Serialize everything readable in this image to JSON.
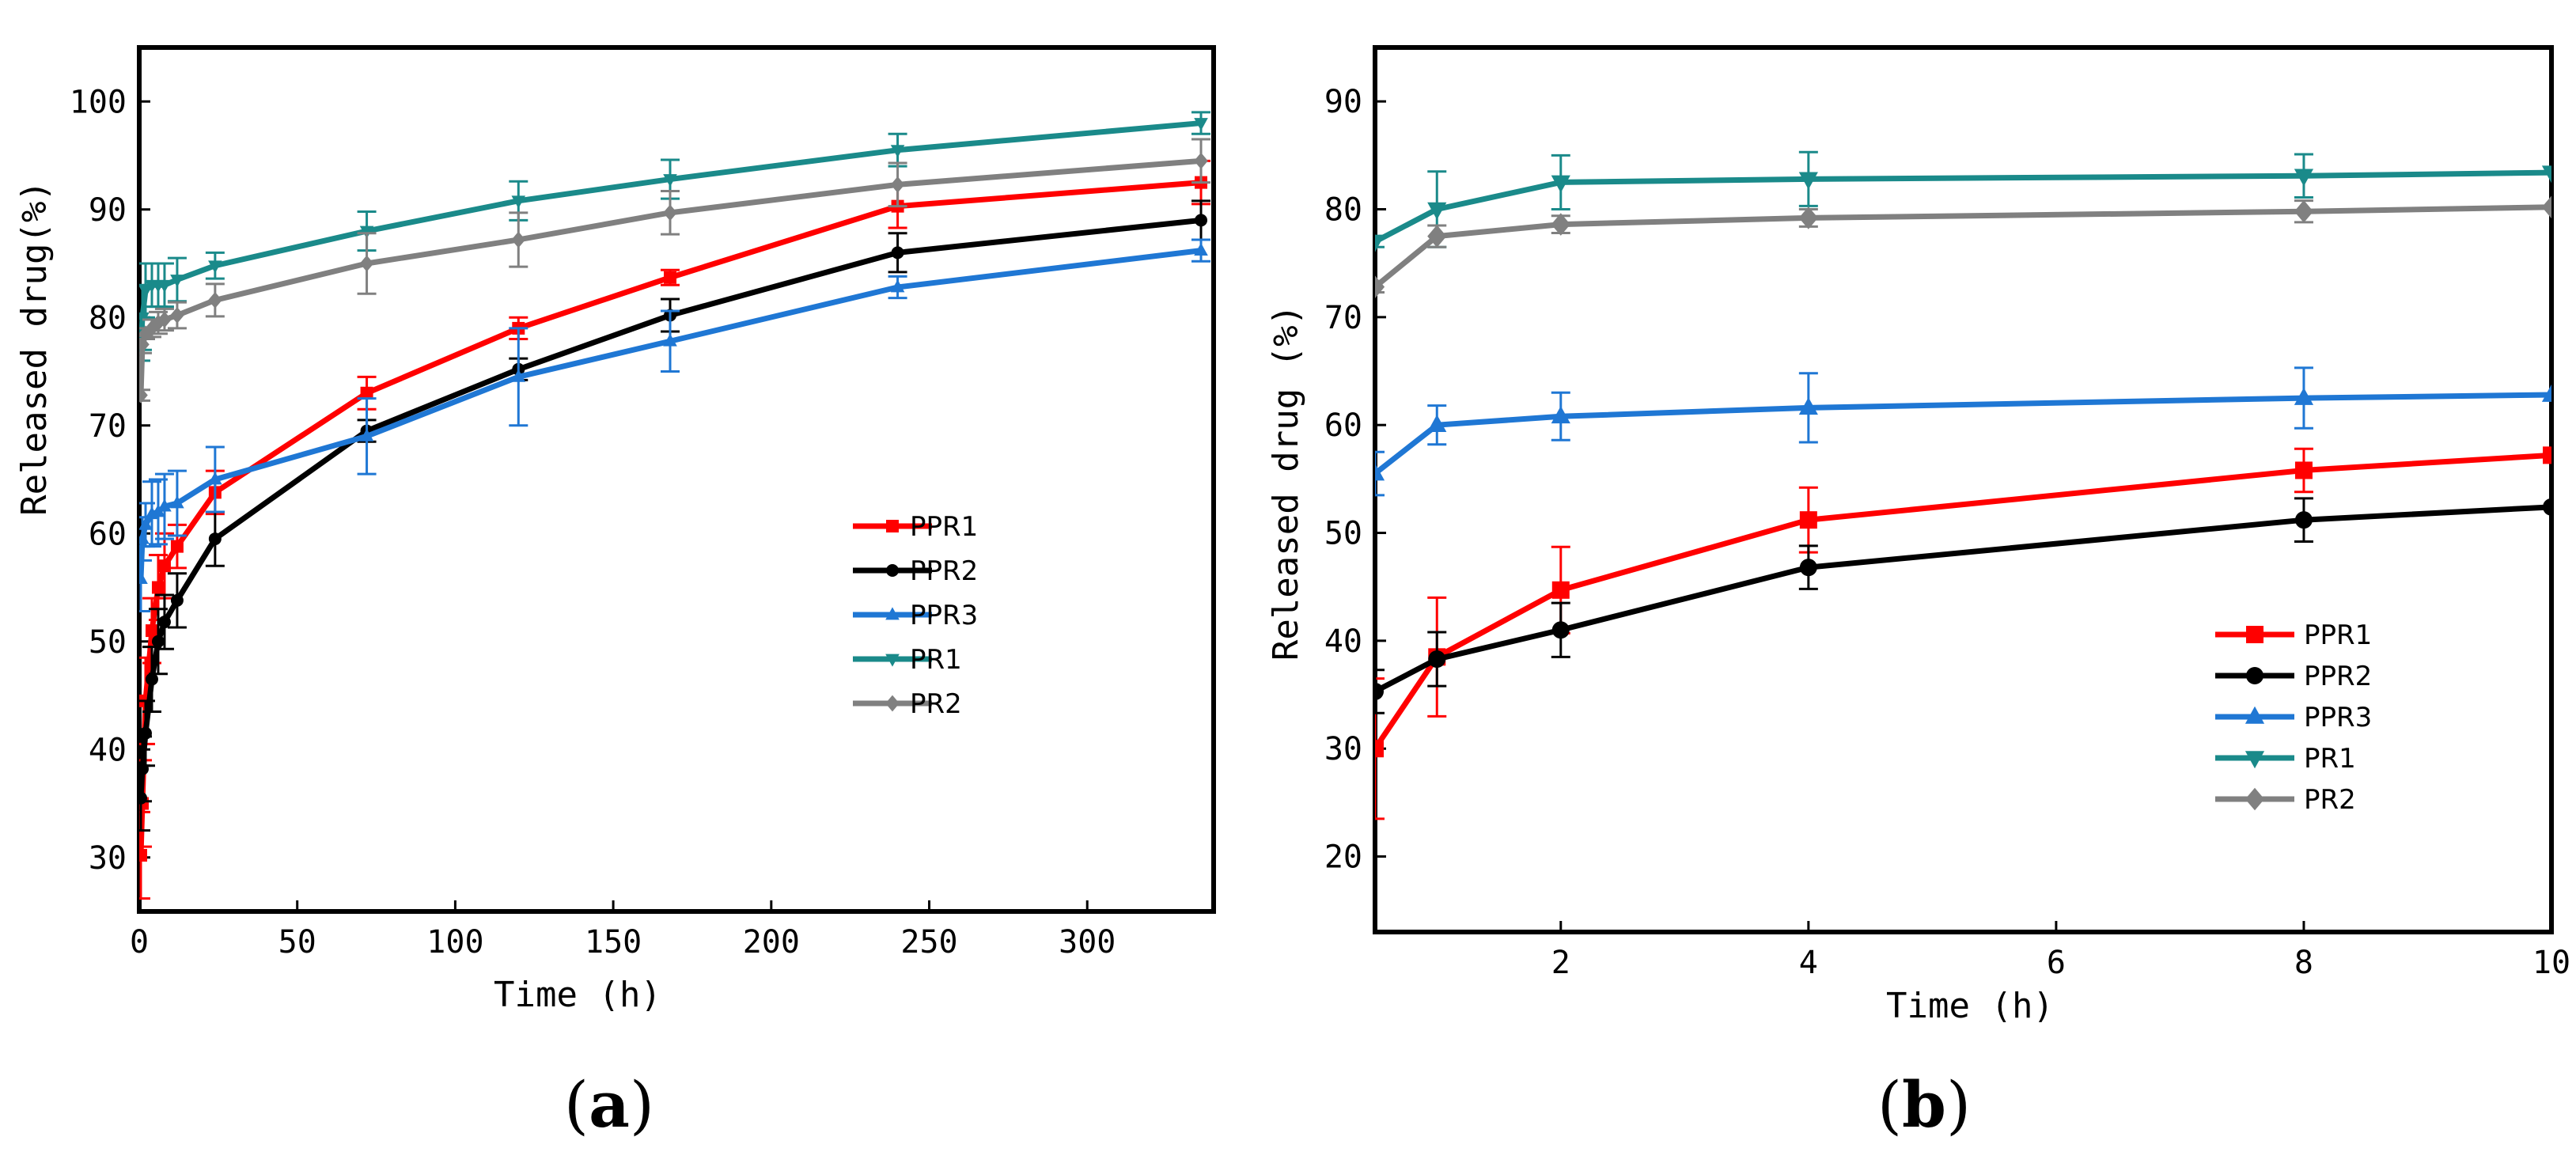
{
  "chart_data": [
    {
      "panel": "(a)",
      "panel_label_letter": "a",
      "type": "line",
      "xlabel": "Time (h)",
      "ylabel": "Released drug(%)",
      "xlim": [
        0,
        340
      ],
      "ylim": [
        25,
        105
      ],
      "xticks": [
        0,
        50,
        100,
        150,
        200,
        250,
        300
      ],
      "yticks": [
        30,
        40,
        50,
        60,
        70,
        80,
        90,
        100
      ],
      "legend": "center-right",
      "series": [
        {
          "name": "PPR1",
          "color": "#ff0000",
          "marker": "square",
          "x": [
            0.5,
            1,
            2,
            4,
            6,
            8,
            12,
            24,
            72,
            120,
            168,
            240,
            336
          ],
          "y": [
            30.2,
            35.0,
            44.5,
            51.0,
            55.0,
            57.0,
            58.8,
            63.8,
            73.0,
            79.0,
            83.7,
            90.3,
            92.5
          ],
          "err": [
            4,
            4,
            4,
            3,
            3,
            3,
            2,
            2,
            1.5,
            1,
            0.7,
            2,
            2
          ]
        },
        {
          "name": "PPR2",
          "color": "#000000",
          "marker": "circle",
          "x": [
            0.5,
            1,
            2,
            4,
            6,
            8,
            12,
            24,
            72,
            120,
            168,
            240,
            336
          ],
          "y": [
            35.5,
            38.2,
            41.5,
            46.5,
            50.0,
            51.8,
            53.8,
            59.5,
            69.5,
            75.2,
            80.2,
            86.0,
            89.0
          ],
          "err": [
            3,
            3,
            3,
            3,
            3,
            2.5,
            2.5,
            2.5,
            1,
            1,
            1.5,
            1.8,
            1.8
          ]
        },
        {
          "name": "PPR3",
          "color": "#1f77d4",
          "marker": "triangle-up",
          "x": [
            0.5,
            1,
            2,
            4,
            6,
            8,
            12,
            24,
            72,
            120,
            168,
            240,
            336
          ],
          "y": [
            55.8,
            59.5,
            60.8,
            61.8,
            62.0,
            62.5,
            62.8,
            65.0,
            69.0,
            74.5,
            77.8,
            82.8,
            86.2
          ],
          "err": [
            3,
            2,
            2,
            3,
            3,
            3,
            3,
            3,
            3.5,
            4.5,
            2.8,
            1,
            1
          ]
        },
        {
          "name": "PR1",
          "color": "#1a8a8a",
          "marker": "triangle-down",
          "x": [
            0.5,
            1,
            2,
            4,
            6,
            8,
            12,
            24,
            72,
            120,
            168,
            240,
            336
          ],
          "y": [
            77.0,
            80.0,
            82.5,
            83.0,
            83.0,
            83.0,
            83.5,
            84.8,
            88.0,
            90.8,
            92.8,
            95.5,
            98.0
          ],
          "err": [
            1,
            3,
            2.5,
            2,
            2,
            2,
            2,
            1.2,
            1.8,
            1.8,
            1.8,
            1.5,
            1
          ]
        },
        {
          "name": "PR2",
          "color": "#808080",
          "marker": "diamond",
          "x": [
            0.5,
            1,
            2,
            4,
            6,
            8,
            12,
            24,
            72,
            120,
            168,
            240,
            336
          ],
          "y": [
            72.8,
            77.5,
            78.5,
            79.0,
            79.5,
            79.8,
            80.2,
            81.6,
            85.0,
            87.2,
            89.7,
            92.3,
            94.5
          ],
          "err": [
            0.5,
            0.8,
            0.5,
            0.8,
            1,
            1,
            1.2,
            1.5,
            2.8,
            2.5,
            2,
            2,
            2
          ]
        }
      ]
    },
    {
      "panel": "(b)",
      "panel_label_letter": "b",
      "type": "line",
      "xlabel": "Time (h)",
      "ylabel": "Released drug (%)",
      "xlim": [
        0.5,
        10
      ],
      "ylim": [
        13,
        95
      ],
      "xticks": [
        2,
        4,
        6,
        8,
        10
      ],
      "yticks": [
        20,
        30,
        40,
        50,
        60,
        70,
        80,
        90
      ],
      "legend": "bottom-right",
      "series": [
        {
          "name": "PPR1",
          "color": "#ff0000",
          "marker": "square",
          "x": [
            0.5,
            1,
            2,
            4,
            8,
            10
          ],
          "y": [
            30.0,
            38.5,
            44.7,
            51.2,
            55.8,
            57.2
          ],
          "err": [
            6.5,
            5.5,
            4,
            3,
            2,
            0
          ]
        },
        {
          "name": "PPR2",
          "color": "#000000",
          "marker": "circle",
          "x": [
            0.5,
            1,
            2,
            4,
            8,
            10
          ],
          "y": [
            35.3,
            38.3,
            41.0,
            46.8,
            51.2,
            52.4
          ],
          "err": [
            2,
            2.5,
            2.5,
            2,
            2,
            0
          ]
        },
        {
          "name": "PPR3",
          "color": "#1f77d4",
          "marker": "triangle-up",
          "x": [
            0.5,
            1,
            2,
            4,
            8,
            10
          ],
          "y": [
            55.5,
            60.0,
            60.8,
            61.6,
            62.5,
            62.8
          ],
          "err": [
            2,
            1.8,
            2.2,
            3.2,
            2.8,
            0
          ]
        },
        {
          "name": "PR1",
          "color": "#1a8a8a",
          "marker": "triangle-down",
          "x": [
            0.5,
            1,
            2,
            4,
            8,
            10
          ],
          "y": [
            77.0,
            80.0,
            82.5,
            82.8,
            83.1,
            83.4
          ],
          "err": [
            0.5,
            3.5,
            2.5,
            2.5,
            2,
            0
          ]
        },
        {
          "name": "PR2",
          "color": "#808080",
          "marker": "diamond",
          "x": [
            0.5,
            1,
            2,
            4,
            8,
            10
          ],
          "y": [
            72.8,
            77.5,
            78.6,
            79.2,
            79.8,
            80.2
          ],
          "err": [
            0.5,
            1,
            0.8,
            0.8,
            1,
            0
          ]
        }
      ]
    }
  ]
}
